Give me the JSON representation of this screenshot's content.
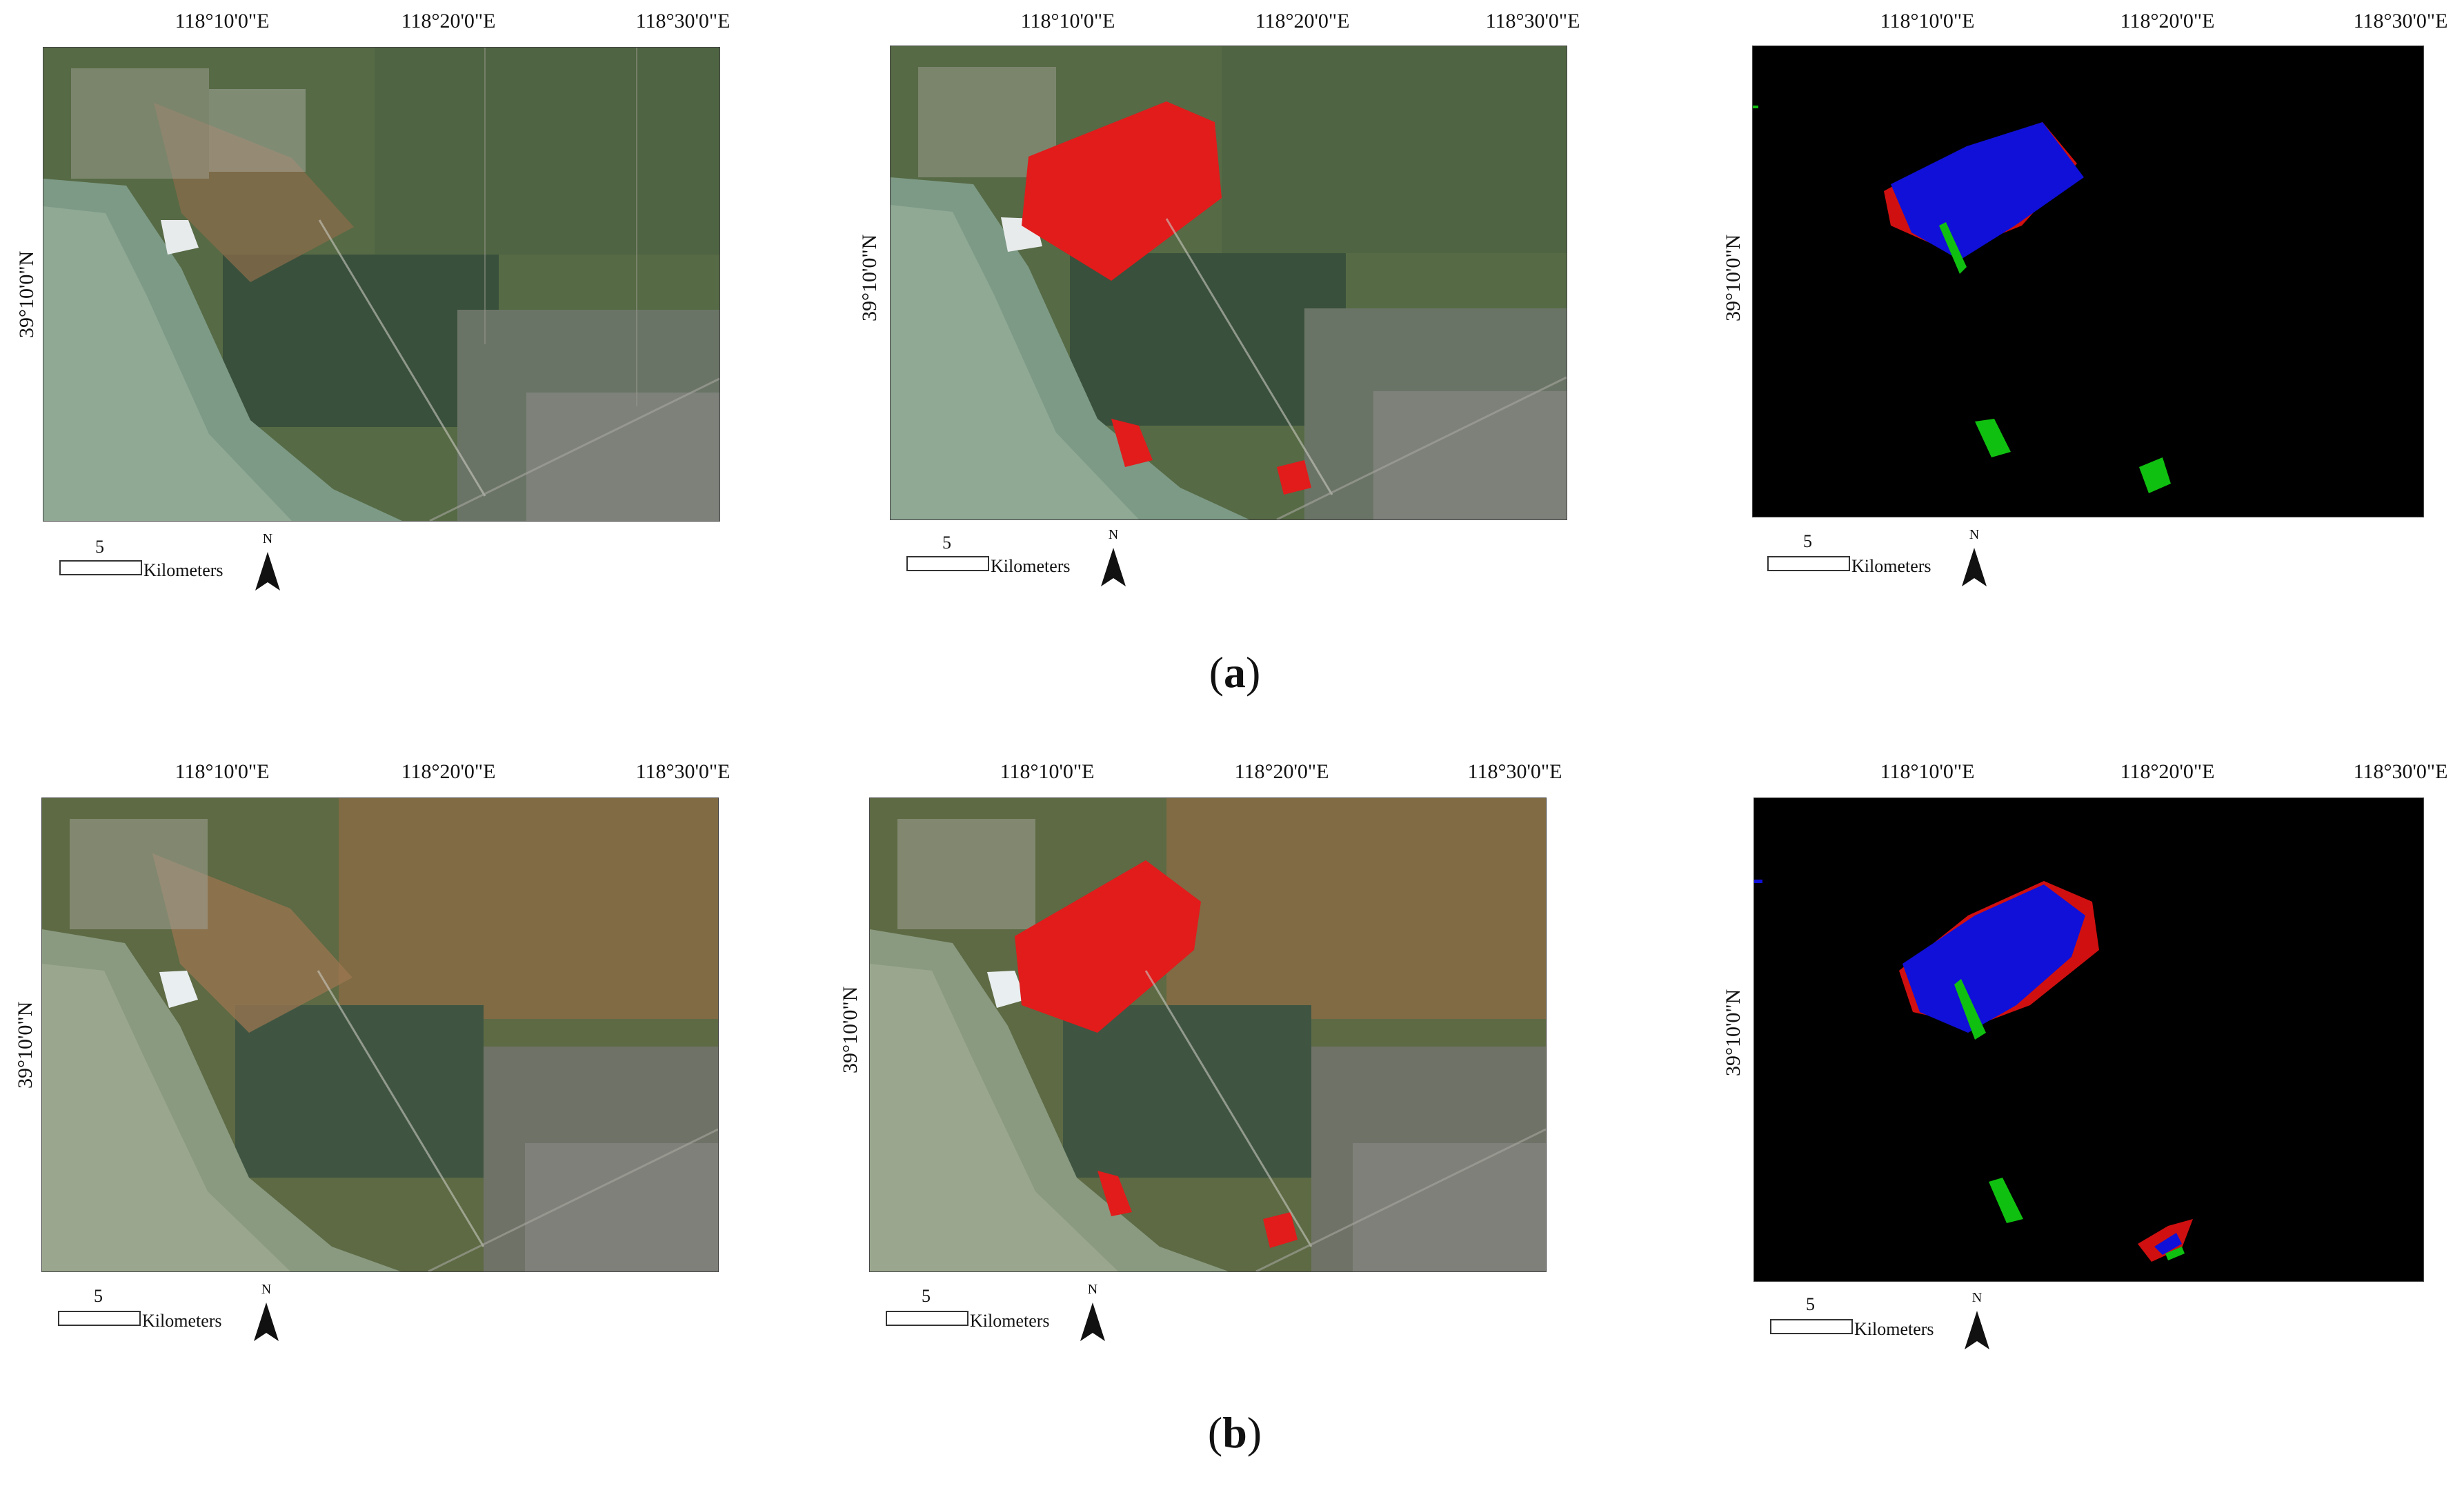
{
  "figure": {
    "lon_labels": [
      "118°10'0\"E",
      "118°20'0\"E",
      "118°30'0\"E"
    ],
    "lat_label": "39°10'0\"N",
    "scale_number": "5",
    "scale_unit": "Kilometers",
    "north_label": "N",
    "colors": {
      "satellite_base": "#5a6b48",
      "sea": "#7d9a86",
      "highlight": "#e21b1b",
      "class_blue": "#1010d8",
      "class_green": "#10c010",
      "class_red": "#d01010",
      "class_background": "#000000"
    }
  },
  "rows": [
    {
      "caption_open": "(",
      "caption_letter": "a",
      "caption_close": ")",
      "panels": [
        {
          "kind": "satellite-image",
          "description_name": "true-color"
        },
        {
          "kind": "satellite-image-with-highlight",
          "description_name": "highlighted-region"
        },
        {
          "kind": "classification-map",
          "description_name": "classification"
        }
      ]
    },
    {
      "caption_open": "(",
      "caption_letter": "b",
      "caption_close": ")",
      "panels": [
        {
          "kind": "satellite-image",
          "description_name": "true-color"
        },
        {
          "kind": "satellite-image-with-highlight",
          "description_name": "highlighted-region"
        },
        {
          "kind": "classification-map",
          "description_name": "classification"
        }
      ]
    }
  ]
}
